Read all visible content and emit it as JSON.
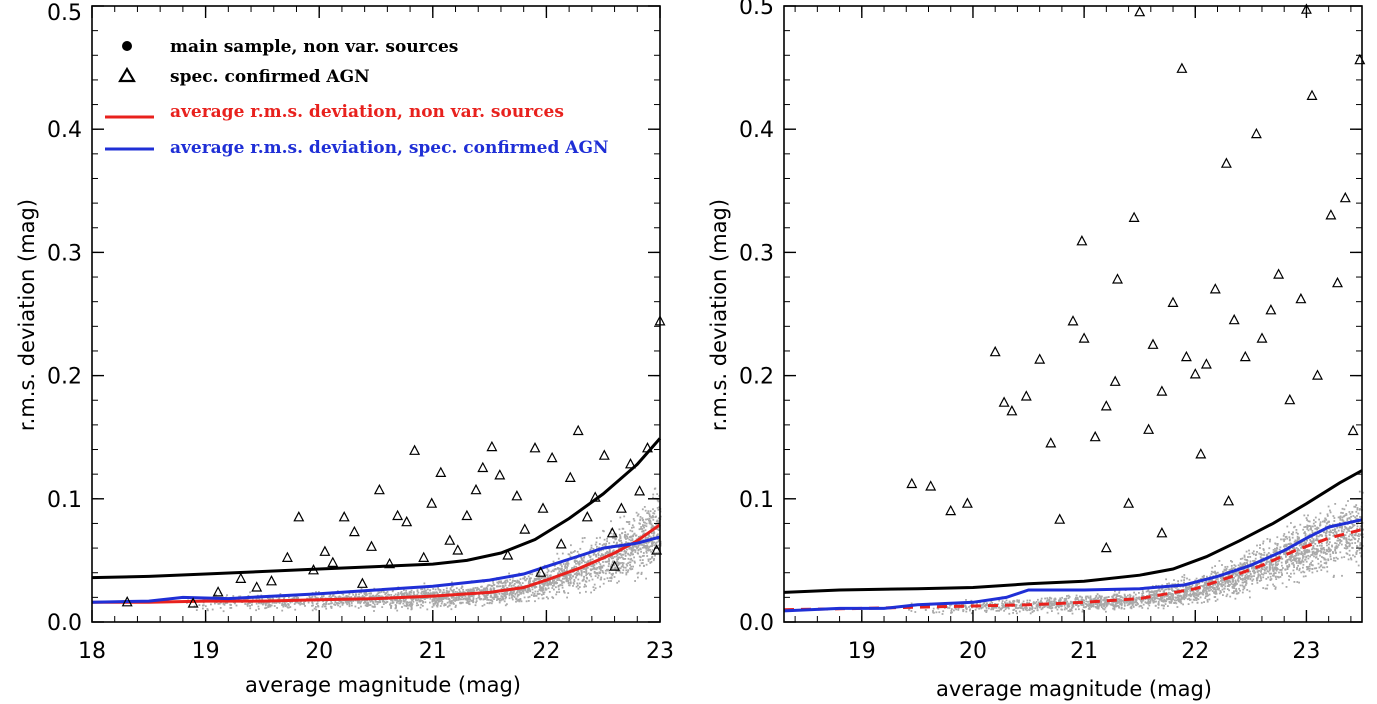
{
  "chart_data": [
    {
      "type": "scatter",
      "title": "",
      "xlabel": "average magnitude (mag)",
      "ylabel": "r.m.s. deviation (mag)",
      "xlim": [
        18,
        23
      ],
      "ylim": [
        0,
        0.5
      ],
      "x_ticks": [
        "18",
        "19",
        "20",
        "21",
        "22",
        "23"
      ],
      "y_ticks": [
        "0.0",
        "0.1",
        "0.2",
        "0.3",
        "0.4",
        "0.5"
      ],
      "legend": {
        "placement": "top-left",
        "entries": [
          {
            "marker": "filled-circle",
            "label": "main sample, non var. sources",
            "color": "#000000"
          },
          {
            "marker": "triangle",
            "label": "spec. confirmed AGN",
            "color": "#000000"
          },
          {
            "marker": "line",
            "label": "average r.m.s. deviation, non var. sources",
            "color": "#e8211d"
          },
          {
            "marker": "line",
            "label": "average r.m.s. deviation, spec. confirmed AGN",
            "color": "#1f2fd6"
          }
        ]
      },
      "series": [
        {
          "kind": "line",
          "color": "#000000",
          "points": [
            [
              18.0,
              0.036
            ],
            [
              18.5,
              0.037
            ],
            [
              19.0,
              0.039
            ],
            [
              19.5,
              0.041
            ],
            [
              20.0,
              0.043
            ],
            [
              20.5,
              0.045
            ],
            [
              21.0,
              0.047
            ],
            [
              21.3,
              0.05
            ],
            [
              21.6,
              0.056
            ],
            [
              21.9,
              0.067
            ],
            [
              22.2,
              0.084
            ],
            [
              22.5,
              0.104
            ],
            [
              22.8,
              0.128
            ],
            [
              23.0,
              0.149
            ]
          ]
        },
        {
          "kind": "line",
          "name": "average r.m.s. deviation, spec. confirmed AGN",
          "color": "#1f2fd6",
          "points": [
            [
              18.0,
              0.016
            ],
            [
              18.5,
              0.017
            ],
            [
              18.8,
              0.02
            ],
            [
              19.2,
              0.019
            ],
            [
              19.6,
              0.021
            ],
            [
              20.0,
              0.023
            ],
            [
              20.5,
              0.026
            ],
            [
              21.0,
              0.029
            ],
            [
              21.5,
              0.034
            ],
            [
              21.8,
              0.039
            ],
            [
              22.0,
              0.045
            ],
            [
              22.3,
              0.054
            ],
            [
              22.5,
              0.06
            ],
            [
              22.8,
              0.064
            ],
            [
              23.0,
              0.069
            ]
          ]
        },
        {
          "kind": "line",
          "name": "average r.m.s. deviation, non var. sources",
          "color": "#e8211d",
          "points": [
            [
              18.0,
              0.016
            ],
            [
              18.5,
              0.016
            ],
            [
              19.0,
              0.017
            ],
            [
              19.5,
              0.017
            ],
            [
              20.0,
              0.018
            ],
            [
              20.5,
              0.019
            ],
            [
              21.0,
              0.021
            ],
            [
              21.5,
              0.024
            ],
            [
              21.8,
              0.028
            ],
            [
              22.0,
              0.034
            ],
            [
              22.3,
              0.044
            ],
            [
              22.6,
              0.056
            ],
            [
              22.8,
              0.066
            ],
            [
              23.0,
              0.079
            ]
          ]
        },
        {
          "kind": "triangles",
          "name": "spec. confirmed AGN",
          "color": "#000000",
          "points": [
            [
              18.31,
              0.016
            ],
            [
              18.89,
              0.015
            ],
            [
              19.11,
              0.024
            ],
            [
              19.31,
              0.035
            ],
            [
              19.45,
              0.028
            ],
            [
              19.58,
              0.033
            ],
            [
              19.72,
              0.052
            ],
            [
              19.82,
              0.085
            ],
            [
              19.95,
              0.042
            ],
            [
              20.05,
              0.057
            ],
            [
              20.12,
              0.048
            ],
            [
              20.22,
              0.085
            ],
            [
              20.31,
              0.073
            ],
            [
              20.38,
              0.031
            ],
            [
              20.46,
              0.061
            ],
            [
              20.53,
              0.107
            ],
            [
              20.62,
              0.047
            ],
            [
              20.69,
              0.086
            ],
            [
              20.77,
              0.081
            ],
            [
              20.84,
              0.139
            ],
            [
              20.92,
              0.052
            ],
            [
              20.99,
              0.096
            ],
            [
              21.07,
              0.121
            ],
            [
              21.15,
              0.066
            ],
            [
              21.22,
              0.058
            ],
            [
              21.3,
              0.086
            ],
            [
              21.38,
              0.107
            ],
            [
              21.44,
              0.125
            ],
            [
              21.52,
              0.142
            ],
            [
              21.59,
              0.119
            ],
            [
              21.66,
              0.054
            ],
            [
              21.74,
              0.102
            ],
            [
              21.81,
              0.075
            ],
            [
              21.9,
              0.141
            ],
            [
              21.97,
              0.092
            ],
            [
              22.05,
              0.133
            ],
            [
              22.13,
              0.063
            ],
            [
              22.21,
              0.117
            ],
            [
              22.28,
              0.155
            ],
            [
              22.36,
              0.085
            ],
            [
              22.43,
              0.101
            ],
            [
              22.51,
              0.135
            ],
            [
              22.58,
              0.072
            ],
            [
              22.66,
              0.092
            ],
            [
              22.74,
              0.128
            ],
            [
              22.82,
              0.106
            ],
            [
              22.89,
              0.141
            ],
            [
              22.97,
              0.058
            ],
            [
              23.0,
              0.244
            ],
            [
              21.95,
              0.04
            ],
            [
              22.6,
              0.045
            ]
          ]
        },
        {
          "kind": "points",
          "name": "main sample, non var. sources",
          "color": "#a9a9a9",
          "description_values": {
            "x_range": [
              18.8,
              23.0
            ],
            "y_band": "cloud following the red line, widening toward faint magnitudes"
          }
        }
      ]
    },
    {
      "type": "scatter",
      "title": "",
      "xlabel": "average magnitude (mag)",
      "ylabel": "r.m.s. deviation (mag)",
      "xlim": [
        18.3,
        23.5
      ],
      "ylim": [
        0,
        0.5
      ],
      "x_ticks": [
        "19",
        "20",
        "21",
        "22",
        "23"
      ],
      "y_ticks": [
        "0.0",
        "0.1",
        "0.2",
        "0.3",
        "0.4",
        "0.5"
      ],
      "series": [
        {
          "kind": "line",
          "color": "#000000",
          "points": [
            [
              18.3,
              0.024
            ],
            [
              18.8,
              0.026
            ],
            [
              19.5,
              0.027
            ],
            [
              20.0,
              0.028
            ],
            [
              20.5,
              0.031
            ],
            [
              21.0,
              0.033
            ],
            [
              21.5,
              0.038
            ],
            [
              21.8,
              0.043
            ],
            [
              22.1,
              0.053
            ],
            [
              22.4,
              0.066
            ],
            [
              22.7,
              0.08
            ],
            [
              23.0,
              0.096
            ],
            [
              23.3,
              0.113
            ],
            [
              23.5,
              0.123
            ]
          ]
        },
        {
          "kind": "line",
          "color": "#1f2fd6",
          "points": [
            [
              18.3,
              0.009
            ],
            [
              18.8,
              0.011
            ],
            [
              19.2,
              0.011
            ],
            [
              19.5,
              0.014
            ],
            [
              20.0,
              0.016
            ],
            [
              20.3,
              0.02
            ],
            [
              20.5,
              0.026
            ],
            [
              21.0,
              0.026
            ],
            [
              21.5,
              0.027
            ],
            [
              21.9,
              0.03
            ],
            [
              22.2,
              0.037
            ],
            [
              22.5,
              0.046
            ],
            [
              22.8,
              0.058
            ],
            [
              23.0,
              0.068
            ],
            [
              23.2,
              0.077
            ],
            [
              23.5,
              0.083
            ]
          ]
        },
        {
          "kind": "line",
          "color": "#e8211d",
          "dashed": true,
          "points": [
            [
              18.3,
              0.01
            ],
            [
              19.0,
              0.011
            ],
            [
              19.5,
              0.012
            ],
            [
              20.0,
              0.013
            ],
            [
              20.5,
              0.014
            ],
            [
              21.0,
              0.016
            ],
            [
              21.5,
              0.019
            ],
            [
              22.0,
              0.027
            ],
            [
              22.3,
              0.036
            ],
            [
              22.6,
              0.046
            ],
            [
              22.9,
              0.058
            ],
            [
              23.2,
              0.068
            ],
            [
              23.5,
              0.075
            ]
          ]
        },
        {
          "kind": "triangles",
          "color": "#000000",
          "points": [
            [
              19.45,
              0.112
            ],
            [
              19.62,
              0.11
            ],
            [
              19.8,
              0.09
            ],
            [
              19.95,
              0.096
            ],
            [
              20.2,
              0.219
            ],
            [
              20.28,
              0.178
            ],
            [
              20.35,
              0.171
            ],
            [
              20.48,
              0.183
            ],
            [
              20.6,
              0.213
            ],
            [
              20.7,
              0.145
            ],
            [
              20.78,
              0.083
            ],
            [
              20.9,
              0.244
            ],
            [
              20.98,
              0.309
            ],
            [
              21.0,
              0.23
            ],
            [
              21.1,
              0.15
            ],
            [
              21.2,
              0.175
            ],
            [
              21.28,
              0.195
            ],
            [
              21.3,
              0.278
            ],
            [
              21.4,
              0.096
            ],
            [
              21.45,
              0.328
            ],
            [
              21.5,
              0.495
            ],
            [
              21.58,
              0.156
            ],
            [
              21.62,
              0.225
            ],
            [
              21.7,
              0.187
            ],
            [
              21.8,
              0.259
            ],
            [
              21.88,
              0.449
            ],
            [
              21.92,
              0.215
            ],
            [
              22.0,
              0.201
            ],
            [
              22.05,
              0.136
            ],
            [
              22.1,
              0.209
            ],
            [
              22.18,
              0.27
            ],
            [
              22.28,
              0.372
            ],
            [
              22.35,
              0.245
            ],
            [
              22.45,
              0.215
            ],
            [
              22.55,
              0.396
            ],
            [
              22.6,
              0.23
            ],
            [
              22.68,
              0.253
            ],
            [
              22.75,
              0.282
            ],
            [
              22.85,
              0.18
            ],
            [
              22.95,
              0.262
            ],
            [
              23.0,
              0.497
            ],
            [
              23.05,
              0.427
            ],
            [
              23.1,
              0.2
            ],
            [
              23.22,
              0.33
            ],
            [
              23.28,
              0.275
            ],
            [
              23.35,
              0.344
            ],
            [
              23.42,
              0.155
            ],
            [
              23.48,
              0.456
            ],
            [
              21.2,
              0.06
            ],
            [
              21.7,
              0.072
            ],
            [
              22.3,
              0.098
            ]
          ]
        },
        {
          "kind": "points",
          "color": "#a9a9a9",
          "description_values": {
            "x_range": [
              19.4,
              23.5
            ],
            "y_band": "cloud following the red dashed line, widening toward faint magnitudes"
          }
        }
      ]
    }
  ]
}
